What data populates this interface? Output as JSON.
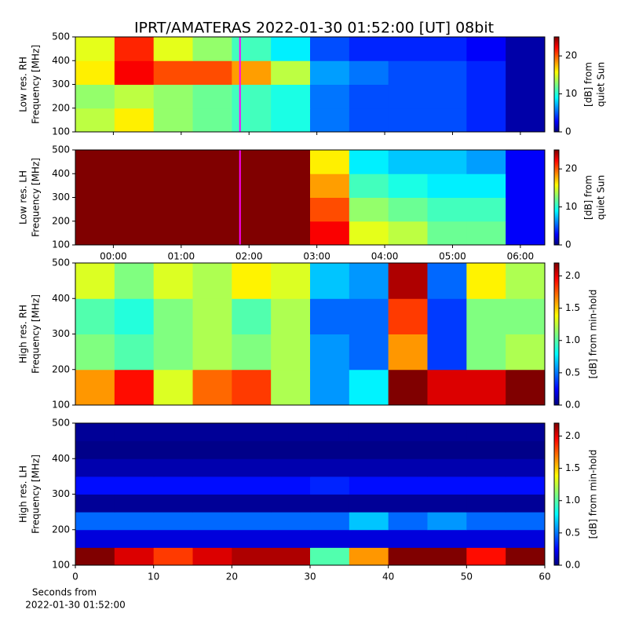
{
  "title": "IPRT/AMATERAS 2022-01-30 01:52:00 [UT]   08bit",
  "chart_data": [
    {
      "type": "heatmap",
      "colormap": "jet",
      "ylabel": [
        "Low res. RH",
        "Frequency [MHz]"
      ],
      "xlim": [
        -0.56,
        6.36
      ],
      "ylim": [
        100,
        500
      ],
      "yticks": [
        100,
        200,
        300,
        400,
        500
      ],
      "clim": [
        0,
        25
      ],
      "cticks": [
        0,
        10,
        20
      ],
      "clabel": [
        "[dB] from",
        "quiet Sun"
      ],
      "marker_x": 1.867,
      "marker_color": "#ff00ff",
      "z": [
        [
          14,
          16,
          13,
          12,
          11,
          10,
          6,
          5,
          5,
          5,
          4,
          1
        ],
        [
          13,
          14,
          13,
          12,
          11,
          10,
          6,
          5,
          5,
          5,
          4,
          1
        ],
        [
          16,
          22,
          20,
          20,
          18,
          14,
          7,
          6,
          5,
          5,
          4,
          1
        ],
        [
          15,
          21,
          15,
          13,
          11,
          9,
          5,
          4,
          4,
          4,
          3,
          1
        ]
      ]
    },
    {
      "type": "heatmap",
      "colormap": "jet",
      "ylabel": [
        "Low res. LH",
        "Frequency [MHz]"
      ],
      "xlim": [
        -0.56,
        6.36
      ],
      "ylim": [
        100,
        500
      ],
      "yticks": [
        100,
        200,
        300,
        400,
        500
      ],
      "xticks": [
        {
          "value": 0,
          "label": "00:00"
        },
        {
          "value": 1,
          "label": "01:00"
        },
        {
          "value": 2,
          "label": "02:00"
        },
        {
          "value": 3,
          "label": "03:00"
        },
        {
          "value": 4,
          "label": "04:00"
        },
        {
          "value": 5,
          "label": "05:00"
        },
        {
          "value": 6,
          "label": "06:00"
        }
      ],
      "clim": [
        0,
        25
      ],
      "cticks": [
        0,
        10,
        20
      ],
      "clabel": [
        "[dB] from",
        "quiet Sun"
      ],
      "marker_x": 1.867,
      "marker_color": "#ff00ff",
      "z": [
        [
          25,
          25,
          25,
          25,
          25,
          25,
          22,
          15,
          14,
          12,
          12,
          3
        ],
        [
          25,
          25,
          25,
          25,
          25,
          25,
          20,
          13,
          12,
          11,
          11,
          3
        ],
        [
          25,
          25,
          25,
          25,
          25,
          25,
          18,
          11,
          10,
          9,
          9,
          3
        ],
        [
          25,
          25,
          25,
          25,
          25,
          25,
          16,
          9,
          8,
          8,
          7,
          3
        ]
      ]
    },
    {
      "type": "heatmap",
      "colormap": "jet",
      "ylabel": [
        "High res. RH",
        "Frequency [MHz]"
      ],
      "xlim": [
        0,
        60
      ],
      "ylim": [
        100,
        500
      ],
      "yticks": [
        100,
        200,
        300,
        400,
        500
      ],
      "clim": [
        0,
        2.2
      ],
      "cticks": [
        {
          "value": 0,
          "label": "0.0"
        },
        {
          "value": 0.5,
          "label": "0.5"
        },
        {
          "value": 1,
          "label": "1.0"
        },
        {
          "value": 1.5,
          "label": "1.5"
        },
        {
          "value": 2,
          "label": "2.0"
        }
      ],
      "clabel": [
        "[dB] from min-hold"
      ],
      "z": [
        [
          1.6,
          1.9,
          1.3,
          1.7,
          1.8,
          1.2,
          0.6,
          0.8,
          2.2,
          2.0,
          2.0,
          2.2
        ],
        [
          1.1,
          1.0,
          1.1,
          1.2,
          1.1,
          1.2,
          0.6,
          0.5,
          1.6,
          0.4,
          1.1,
          1.2
        ],
        [
          1.0,
          0.9,
          1.1,
          1.2,
          1.0,
          1.2,
          0.5,
          0.5,
          1.8,
          0.4,
          1.1,
          1.1
        ],
        [
          1.3,
          1.1,
          1.3,
          1.2,
          1.4,
          1.3,
          0.7,
          0.6,
          2.1,
          0.5,
          1.4,
          1.2
        ]
      ]
    },
    {
      "type": "heatmap",
      "colormap": "jet",
      "ylabel": [
        "High res. LH",
        "Frequency [MHz]"
      ],
      "xlim": [
        0,
        60
      ],
      "ylim": [
        100,
        500
      ],
      "yticks": [
        100,
        200,
        300,
        400,
        500
      ],
      "xticks": [
        0,
        10,
        20,
        30,
        40,
        50,
        60
      ],
      "xlabel": [
        "Seconds from",
        "2022-01-30 01:52:00"
      ],
      "clim": [
        0,
        2.2
      ],
      "cticks": [
        {
          "value": 0,
          "label": "0.0"
        },
        {
          "value": 0.5,
          "label": "0.5"
        },
        {
          "value": 1,
          "label": "1.0"
        },
        {
          "value": 1.5,
          "label": "1.5"
        },
        {
          "value": 2,
          "label": "2.0"
        }
      ],
      "clabel": [
        "[dB] from min-hold"
      ],
      "z": [
        [
          2.2,
          2.0,
          1.8,
          2.0,
          2.1,
          2.1,
          1.0,
          1.6,
          2.2,
          2.2,
          1.9,
          2.2
        ],
        [
          0.2,
          0.2,
          0.2,
          0.2,
          0.2,
          0.2,
          0.2,
          0.2,
          0.2,
          0.2,
          0.2,
          0.2
        ],
        [
          0.5,
          0.5,
          0.5,
          0.5,
          0.5,
          0.5,
          0.5,
          0.7,
          0.5,
          0.6,
          0.5,
          0.5
        ],
        [
          0.05,
          0.05,
          0.05,
          0.05,
          0.05,
          0.05,
          0.05,
          0.05,
          0.05,
          0.05,
          0.05,
          0.05
        ],
        [
          0.3,
          0.3,
          0.3,
          0.3,
          0.3,
          0.3,
          0.35,
          0.3,
          0.3,
          0.3,
          0.3,
          0.3
        ],
        [
          0.1,
          0.1,
          0.1,
          0.1,
          0.1,
          0.1,
          0.1,
          0.1,
          0.1,
          0.1,
          0.1,
          0.1
        ],
        [
          0.02,
          0.02,
          0.02,
          0.02,
          0.02,
          0.02,
          0.02,
          0.02,
          0.02,
          0.02,
          0.02,
          0.02
        ],
        [
          0.05,
          0.05,
          0.05,
          0.05,
          0.05,
          0.05,
          0.05,
          0.05,
          0.05,
          0.05,
          0.05,
          0.05
        ]
      ]
    }
  ]
}
